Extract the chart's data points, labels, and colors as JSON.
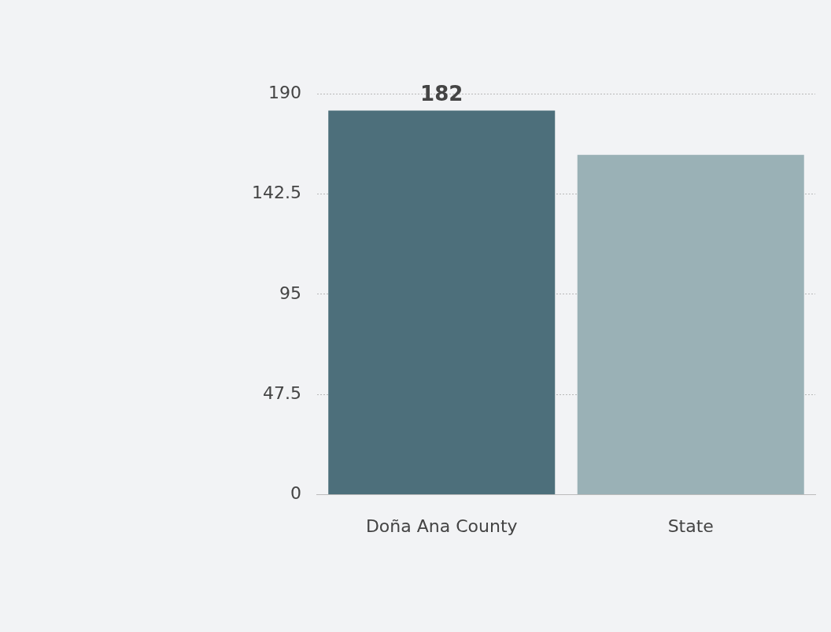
{
  "chart_data": {
    "type": "bar",
    "categories": [
      "Doña Ana County",
      "State"
    ],
    "values": [
      182,
      161
    ],
    "colors": [
      "#4d6f7b",
      "#9ab1b6"
    ],
    "value_labels": [
      "182",
      null
    ],
    "ylim": [
      0,
      190
    ],
    "yticks": [
      0,
      47.5,
      95,
      142.5,
      190
    ],
    "grid": "y",
    "legend": false
  }
}
